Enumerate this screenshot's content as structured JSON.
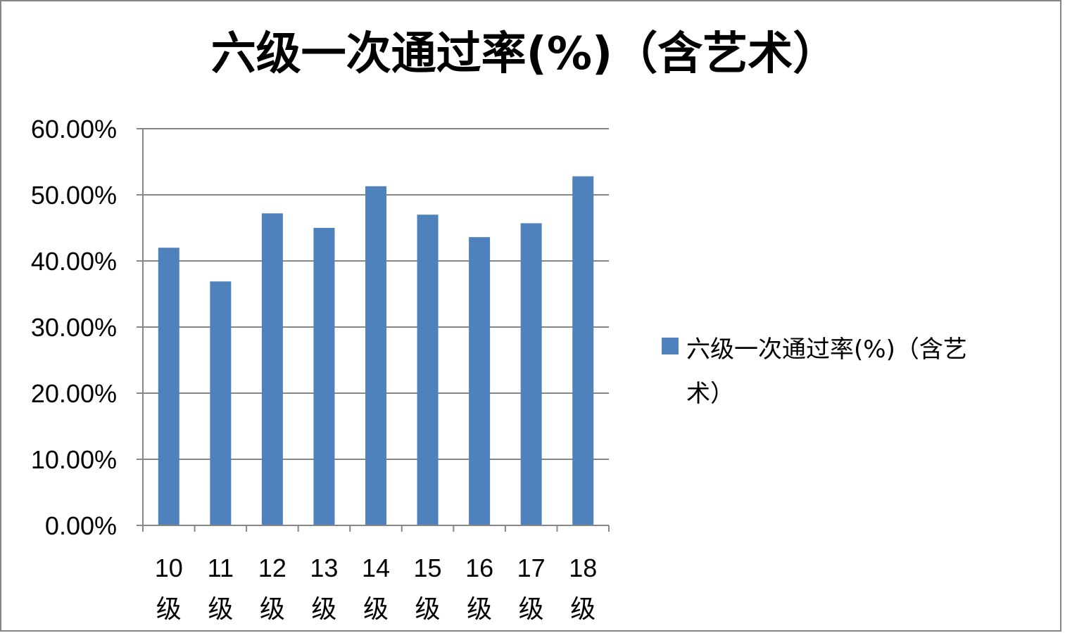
{
  "colors": {
    "bar": "#4f81bd",
    "grid": "#878787",
    "axis": "#878787",
    "border": "#878787",
    "text": "#000000"
  },
  "chart_data": {
    "type": "bar",
    "title": "六级一次通过率(%)（含艺术）",
    "categories": [
      [
        "10",
        "级"
      ],
      [
        "11",
        "级"
      ],
      [
        "12",
        "级"
      ],
      [
        "13",
        "级"
      ],
      [
        "14",
        "级"
      ],
      [
        "15",
        "级"
      ],
      [
        "16",
        "级"
      ],
      [
        "17",
        "级"
      ],
      [
        "18",
        "级"
      ]
    ],
    "series": [
      {
        "name": "六级一次通过率(%)（含艺术）",
        "values": [
          0.42,
          0.369,
          0.472,
          0.45,
          0.513,
          0.47,
          0.436,
          0.457,
          0.528
        ]
      }
    ],
    "ylim": [
      0,
      0.6
    ],
    "yticks": [
      0,
      0.1,
      0.2,
      0.3,
      0.4,
      0.5,
      0.6
    ],
    "ytick_labels": [
      "0.00%",
      "10.00%",
      "20.00%",
      "30.00%",
      "40.00%",
      "50.00%",
      "60.00%"
    ],
    "grid": true,
    "legend": {
      "position": "right",
      "lines": [
        "六级一次通过率(%)（含艺",
        "术）"
      ]
    }
  }
}
